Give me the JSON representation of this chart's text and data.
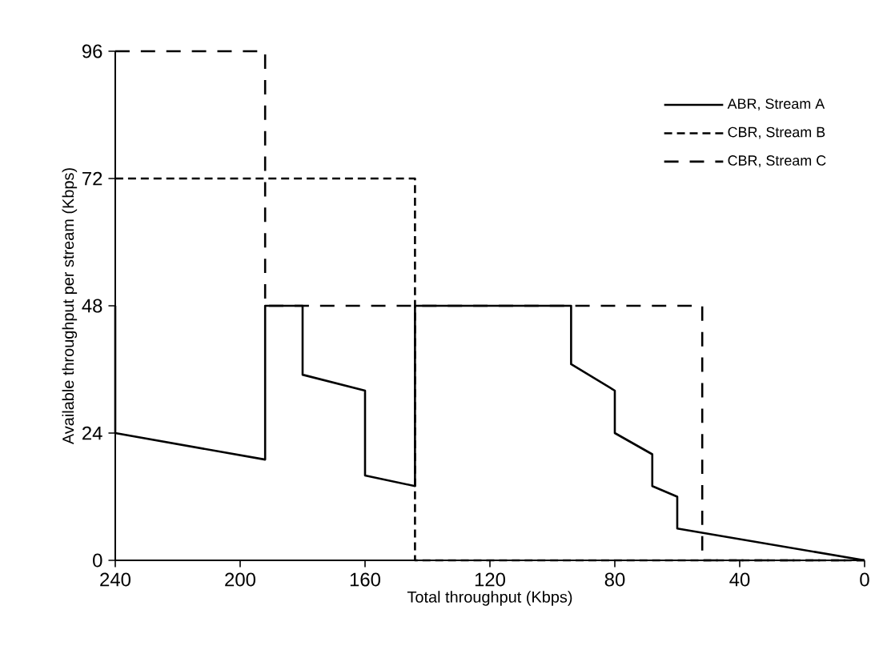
{
  "chart_data": {
    "type": "line",
    "xlabel": "Total throughput (Kbps)",
    "ylabel": "Available throughput per stream (Kbps)",
    "xlim": [
      240,
      0
    ],
    "ylim": [
      0,
      96
    ],
    "xticks": [
      240,
      200,
      160,
      120,
      80,
      40,
      0
    ],
    "yticks": [
      0,
      24,
      48,
      72,
      96
    ],
    "grid": false,
    "legend": "top right",
    "marker": "none",
    "series": [
      {
        "name": "ABR, Stream A",
        "color": "#000000",
        "line_style": "solid",
        "x": [
          240,
          240,
          192,
          192,
          180,
          180,
          160,
          160,
          144,
          144,
          94,
          94,
          80,
          80,
          68,
          68,
          60,
          60,
          0
        ],
        "values": [
          48,
          24,
          19,
          48,
          48,
          35,
          32,
          16,
          14,
          48,
          48,
          37,
          32,
          24,
          20,
          14,
          12,
          6,
          0
        ]
      },
      {
        "name": "CBR, Stream B",
        "color": "#000000",
        "line_style": "dashed",
        "x": [
          240,
          144,
          144,
          0
        ],
        "values": [
          72,
          72,
          0,
          0
        ]
      },
      {
        "name": "CBR, Stream C",
        "color": "#000000",
        "line_style": "dashed",
        "x": [
          240,
          192,
          192,
          52,
          52,
          0
        ],
        "values": [
          96,
          96,
          48,
          48,
          0,
          0
        ]
      }
    ]
  }
}
